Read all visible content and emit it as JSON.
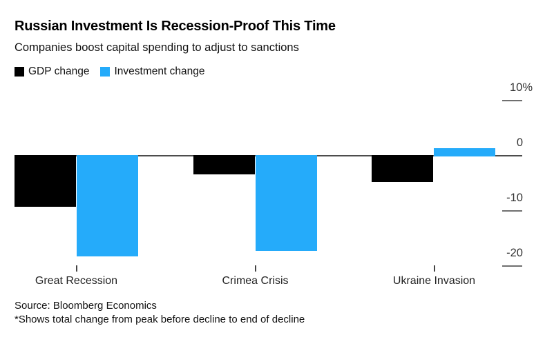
{
  "header": {
    "title": "Russian Investment Is Recession-Proof This Time",
    "subtitle": "Companies boost capital spending to adjust to sanctions"
  },
  "legend": {
    "items": [
      {
        "label": "GDP change",
        "color": "#000000"
      },
      {
        "label": "Investment change",
        "color": "#25ABFA"
      }
    ]
  },
  "chart_data": {
    "type": "bar",
    "title": "Russian Investment Is Recession-Proof This Time",
    "subtitle": "Companies boost capital spending to adjust to sanctions",
    "categories": [
      "Great Recession",
      "Crimea Crisis",
      "Ukraine Invasion"
    ],
    "series": [
      {
        "name": "GDP change",
        "color": "#000000",
        "values": [
          -9.2,
          -3.4,
          -4.8
        ]
      },
      {
        "name": "Investment change",
        "color": "#25ABFA",
        "values": [
          -18.3,
          -17.2,
          1.2
        ]
      }
    ],
    "unit": "%",
    "ylim": [
      -20,
      10
    ],
    "yticks": [
      {
        "value": 10,
        "label": "10%"
      },
      {
        "value": 0,
        "label": "0"
      },
      {
        "value": -10,
        "label": "-10"
      },
      {
        "value": -20,
        "label": "-20"
      }
    ],
    "legend_position": "top-left",
    "grid": false,
    "baseline": 0
  },
  "footer": {
    "source": "Source: Bloomberg Economics",
    "footnote": "*Shows total change from peak before decline to end of decline"
  }
}
